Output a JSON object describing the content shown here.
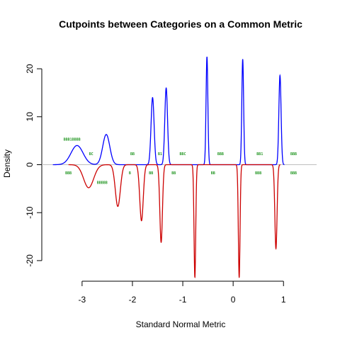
{
  "chart_data": {
    "type": "line",
    "title": "Cutpoints between Categories on a Common Metric",
    "xlabel": "Standard Normal Metric",
    "ylabel": "Density",
    "xlim": [
      -3.8,
      1.7
    ],
    "ylim": [
      -24,
      24
    ],
    "x_ticks": [
      -3,
      -2,
      -1,
      0,
      1
    ],
    "y_ticks": [
      -20,
      -10,
      0,
      10,
      20
    ],
    "grid": false,
    "baseline": {
      "y": 0,
      "color": "#bebebe"
    },
    "series": [
      {
        "color": "#0000ff",
        "direction": "up",
        "peaks": [
          {
            "mean": -3.1,
            "sd": 0.12,
            "height": 4
          },
          {
            "mean": -2.52,
            "sd": 0.07,
            "height": 6.3
          },
          {
            "mean": -1.6,
            "sd": 0.03,
            "height": 14
          },
          {
            "mean": -1.33,
            "sd": 0.027,
            "height": 16
          },
          {
            "mean": -0.52,
            "sd": 0.018,
            "height": 22.5
          },
          {
            "mean": 0.19,
            "sd": 0.018,
            "height": 22
          },
          {
            "mean": 0.93,
            "sd": 0.022,
            "height": 18.6
          }
        ]
      },
      {
        "color": "#cc0000",
        "direction": "down",
        "peaks": [
          {
            "mean": -2.87,
            "sd": 0.1,
            "height": 4.8
          },
          {
            "mean": -2.29,
            "sd": 0.05,
            "height": 8.7
          },
          {
            "mean": -1.82,
            "sd": 0.035,
            "height": 11.7
          },
          {
            "mean": -1.43,
            "sd": 0.026,
            "height": 16.2
          },
          {
            "mean": -0.76,
            "sd": 0.017,
            "height": 23.5
          },
          {
            "mean": 0.12,
            "sd": 0.017,
            "height": 23.5
          },
          {
            "mean": 0.85,
            "sd": 0.022,
            "height": 17.5
          }
        ]
      }
    ],
    "category_labels_upper": [
      {
        "text": "BBB1BBBB",
        "x": -3.2,
        "y": 5
      },
      {
        "text": "BC",
        "x": -2.82,
        "y": 2
      },
      {
        "text": "BB",
        "x": -2.0,
        "y": 2
      },
      {
        "text": "B1",
        "x": -1.45,
        "y": 2
      },
      {
        "text": "BBC",
        "x": -1.0,
        "y": 2
      },
      {
        "text": "BBB",
        "x": -0.25,
        "y": 2
      },
      {
        "text": "BB1",
        "x": 0.53,
        "y": 2
      },
      {
        "text": "BBB",
        "x": 1.2,
        "y": 2
      }
    ],
    "category_labels_lower": [
      {
        "text": "BBB",
        "x": -3.27,
        "y": -2
      },
      {
        "text": "BBBBB",
        "x": -2.6,
        "y": -4
      },
      {
        "text": "B",
        "x": -2.05,
        "y": -2
      },
      {
        "text": "BB",
        "x": -1.63,
        "y": -2
      },
      {
        "text": "BB",
        "x": -1.18,
        "y": -2
      },
      {
        "text": "BB",
        "x": -0.4,
        "y": -2
      },
      {
        "text": "BBB",
        "x": 0.5,
        "y": -2
      },
      {
        "text": "BBB",
        "x": 1.2,
        "y": -2
      }
    ]
  }
}
